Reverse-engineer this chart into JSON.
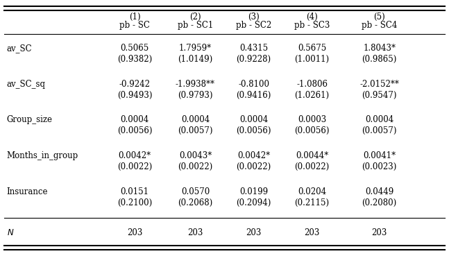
{
  "col_headers_row1": [
    "",
    "(1)",
    "(2)",
    "(3)",
    "(4)",
    "(5)"
  ],
  "col_headers_row2": [
    "",
    "pb - SC",
    "pb - SC1",
    "pb - SC2",
    "pb - SC3",
    "pb - SC4"
  ],
  "rows": [
    {
      "label": "av_SC",
      "values": [
        "0.5065",
        "1.7959*",
        "0.4315",
        "0.5675",
        "1.8043*"
      ],
      "se": [
        "(0.9382)",
        "(1.0149)",
        "(0.9228)",
        "(1.0011)",
        "(0.9865)"
      ]
    },
    {
      "label": "av_SC_sq",
      "values": [
        "-0.9242",
        "-1.9938**",
        "-0.8100",
        "-1.0806",
        "-2.0152**"
      ],
      "se": [
        "(0.9493)",
        "(0.9793)",
        "(0.9416)",
        "(1.0261)",
        "(0.9547)"
      ]
    },
    {
      "label": "Group_size",
      "values": [
        "0.0004",
        "0.0004",
        "0.0004",
        "0.0003",
        "0.0004"
      ],
      "se": [
        "(0.0056)",
        "(0.0057)",
        "(0.0056)",
        "(0.0056)",
        "(0.0057)"
      ]
    },
    {
      "label": "Months_in_group",
      "values": [
        "0.0042*",
        "0.0043*",
        "0.0042*",
        "0.0044*",
        "0.0041*"
      ],
      "se": [
        "(0.0022)",
        "(0.0022)",
        "(0.0022)",
        "(0.0022)",
        "(0.0023)"
      ]
    },
    {
      "label": "Insurance",
      "values": [
        "0.0151",
        "0.0570",
        "0.0199",
        "0.0204",
        "0.0449"
      ],
      "se": [
        "(0.2100)",
        "(0.2068)",
        "(0.2094)",
        "(0.2115)",
        "(0.2080)"
      ]
    }
  ],
  "bottom_row_label": "N",
  "bottom_row_values": [
    "203",
    "203",
    "203",
    "203",
    "203"
  ],
  "bg_color": "#ffffff",
  "text_color": "#000000",
  "font_size": 8.5
}
